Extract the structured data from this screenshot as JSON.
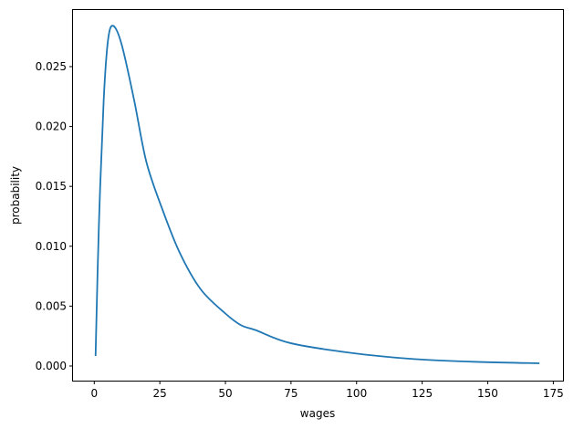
{
  "chart_data": {
    "type": "line",
    "title": "",
    "xlabel": "wages",
    "ylabel": "probability",
    "xlim": [
      -8.1,
      178.7
    ],
    "ylim": [
      -0.00122,
      0.0298
    ],
    "xticks": [
      0,
      25,
      50,
      75,
      100,
      125,
      150,
      175
    ],
    "xtick_labels": [
      "0",
      "25",
      "50",
      "75",
      "100",
      "125",
      "150",
      "175"
    ],
    "yticks": [
      0,
      0.005,
      0.01,
      0.015,
      0.02,
      0.025
    ],
    "ytick_labels": [
      "0.000",
      "0.005",
      "0.010",
      "0.015",
      "0.020",
      "0.025"
    ],
    "grid": false,
    "line_color": "#1f77b4",
    "series": [
      {
        "x": [
          0.5,
          1.8,
          3.6,
          5.3,
          7.3,
          10.5,
          15.2,
          19.8,
          25.6,
          32.5,
          40.6,
          49.9,
          56,
          61.5,
          75,
          100,
          125.5,
          148.6,
          169.7
        ],
        "y": [
          0.00084,
          0.012,
          0.0222,
          0.0273,
          0.0284,
          0.0268,
          0.0222,
          0.0171,
          0.0133,
          0.0095,
          0.0064,
          0.0044,
          0.0034,
          0.003,
          0.0019,
          0.00104,
          0.00053,
          0.00033,
          0.00023
        ]
      }
    ]
  }
}
